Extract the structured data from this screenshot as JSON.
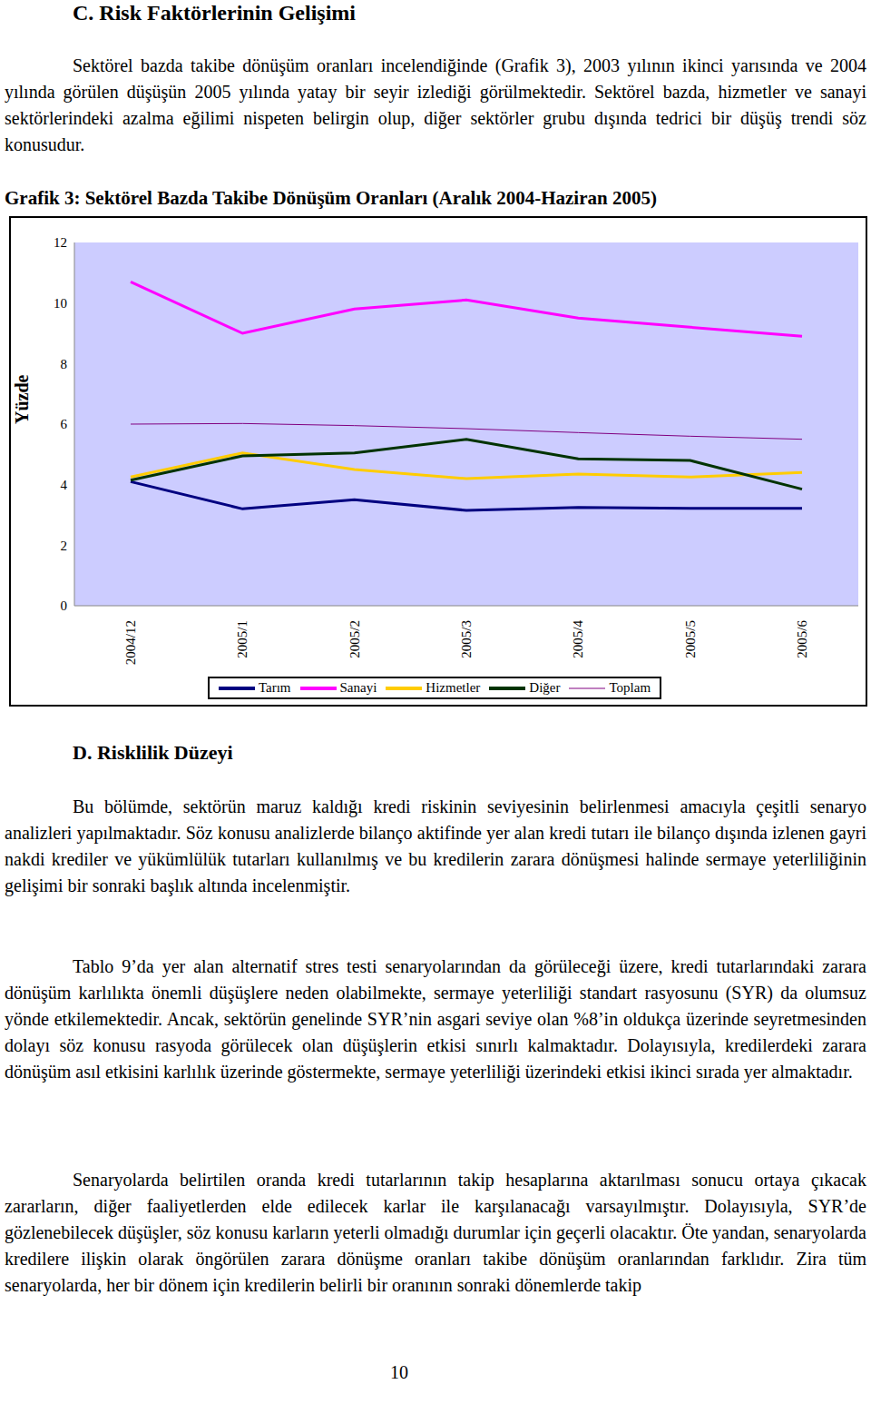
{
  "section_c": {
    "heading": "C. Risk Faktörlerinin Gelişimi",
    "paragraphs": [
      "Sektörel bazda takibe dönüşüm oranları incelendiğinde (Grafik 3), 2003 yılının ikinci yarısında ve 2004 yılında görülen düşüşün 2005 yılında yatay bir seyir izlediği görülmektedir. Sektörel bazda, hizmetler ve sanayi sektörlerindeki azalma eğilimi nispeten belirgin olup, diğer sektörler grubu dışında tedrici bir düşüş trendi söz konusudur."
    ]
  },
  "chart_data": {
    "type": "line",
    "title": "Grafik 3: Sektörel Bazda Takibe Dönüşüm Oranları (Aralık 2004-Haziran 2005)",
    "y_label": "Yüzde",
    "categories": [
      "2004/12",
      "2005/1",
      "2005/2",
      "2005/3",
      "2005/4",
      "2005/5",
      "2005/6"
    ],
    "series": [
      {
        "name": "Tarım",
        "color": "#000080",
        "line_style": "solid",
        "values": [
          4.1,
          3.2,
          3.5,
          3.15,
          3.25,
          3.22,
          3.22
        ]
      },
      {
        "name": "Sanayi",
        "color": "#FF00FF",
        "line_style": "solid",
        "values": [
          10.7,
          9.0,
          9.8,
          10.1,
          9.5,
          9.2,
          8.9
        ]
      },
      {
        "name": "Hizmetler",
        "color": "#FFCC00",
        "line_style": "solid",
        "values": [
          4.25,
          5.05,
          4.5,
          4.2,
          4.35,
          4.25,
          4.4
        ]
      },
      {
        "name": "Diğer",
        "color": "#003300",
        "line_style": "solid",
        "values": [
          4.15,
          4.95,
          5.05,
          5.5,
          4.85,
          4.8,
          3.85
        ]
      },
      {
        "name": "Toplam",
        "color": "#800080",
        "line_style": "thin",
        "values": [
          6.0,
          6.02,
          5.95,
          5.85,
          5.72,
          5.6,
          5.5
        ]
      }
    ],
    "ylim": [
      0,
      12
    ],
    "yticks": [
      0,
      2,
      4,
      6,
      8,
      10,
      12
    ],
    "grid": false,
    "legend": "bottom"
  },
  "section_d": {
    "heading": "D. Risklilik Düzeyi",
    "paragraphs": [
      "Bu bölümde, sektörün maruz kaldığı kredi riskinin seviyesinin belirlenmesi amacıyla çeşitli senaryo analizleri yapılmaktadır. Söz konusu analizlerde bilanço aktifinde yer alan kredi tutarı ile bilanço dışında izlenen gayri nakdi krediler ve yükümlülük tutarları kullanılmış ve bu kredilerin zarara dönüşmesi halinde sermaye yeterliliğinin gelişimi bir sonraki başlık altında incelenmiştir.",
      "Tablo 9’da yer alan alternatif stres testi senaryolarından da görüleceği üzere, kredi tutarlarındaki zarara dönüşüm karlılıkta önemli düşüşlere neden olabilmekte, sermaye yeterliliği standart rasyosunu (SYR) da olumsuz yönde etkilemektedir. Ancak, sektörün genelinde SYR’nin asgari seviye olan %8’in oldukça üzerinde seyretmesinden dolayı söz konusu rasyoda görülecek olan düşüşlerin etkisi sınırlı kalmaktadır. Dolayısıyla, kredilerdeki zarara dönüşüm asıl etkisini karlılık üzerinde göstermekte, sermaye yeterliliği üzerindeki etkisi ikinci sırada yer almaktadır.",
      "Senaryolarda belirtilen oranda kredi tutarlarının takip hesaplarına aktarılması sonucu ortaya çıkacak zararların, diğer faaliyetlerden elde edilecek karlar ile karşılanacağı varsayılmıştır. Dolayısıyla, SYR’de gözlenebilecek düşüşler, söz konusu karların yeterli olmadığı durumlar için geçerli olacaktır. Öte yandan, senaryolarda kredilere ilişkin olarak öngörülen zarara dönüşme oranları takibe dönüşüm oranlarından farklıdır. Zira tüm senaryolarda, her bir dönem için kredilerin belirli bir oranının sonraki dönemlerde takip"
    ]
  },
  "page_number": "10"
}
